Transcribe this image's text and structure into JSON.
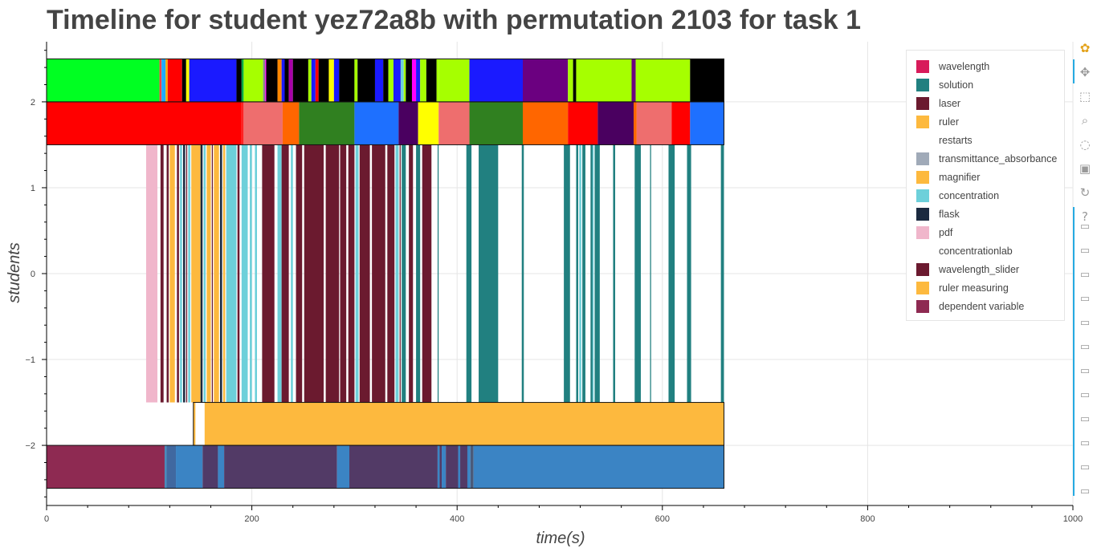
{
  "chart_data": {
    "type": "bar",
    "orientation": "horizontal-timeline",
    "title": "Timeline for student yez72a8b with permutation 2103 for task 1",
    "xlabel": "time(s)",
    "ylabel": "students",
    "xlim": [
      0,
      1000
    ],
    "ylim": [
      -2.7,
      2.7
    ],
    "x_ticks": [
      0,
      200,
      400,
      600,
      800,
      1000
    ],
    "y_ticks": [
      -2,
      -1,
      0,
      1,
      2
    ],
    "y_tick_labels": [
      "−2",
      "−1",
      "0",
      "1",
      "2"
    ],
    "grid": true,
    "legend_position": "top-right",
    "legend": [
      {
        "label": "wavelength",
        "color": "#d81b5a"
      },
      {
        "label": "solution",
        "color": "#218080"
      },
      {
        "label": "laser",
        "color": "#6b1a2f"
      },
      {
        "label": "ruler",
        "color": "#fdb93e"
      },
      {
        "label": "restarts",
        "color": "#ffffff"
      },
      {
        "label": "transmittance_absorbance",
        "color": "#a0aab8"
      },
      {
        "label": "magnifier",
        "color": "#fdb93e"
      },
      {
        "label": "concentration",
        "color": "#6dd0da"
      },
      {
        "label": "flask",
        "color": "#1b2a40"
      },
      {
        "label": "pdf",
        "color": "#f0b6cb"
      },
      {
        "label": "concentrationlab",
        "color": "#ffffff"
      },
      {
        "label": "wavelength_slider",
        "color": "#6b1a2f"
      },
      {
        "label": "ruler measuring",
        "color": "#fdb93e"
      },
      {
        "label": "dependent variable",
        "color": "#8e2a52"
      }
    ],
    "rows": [
      {
        "y_range": [
          2,
          2.5
        ],
        "segments": [
          [
            0,
            110,
            "#00ff22"
          ],
          [
            110,
            112,
            "#ff4444"
          ],
          [
            112,
            116,
            "#22aaff"
          ],
          [
            116,
            118,
            "#ffaa00"
          ],
          [
            118,
            132,
            "#ff0000"
          ],
          [
            132,
            136,
            "#000000"
          ],
          [
            136,
            139,
            "#ffff00"
          ],
          [
            139,
            185,
            "#1a1aff"
          ],
          [
            185,
            190,
            "#000000"
          ],
          [
            190,
            192,
            "#00aa44"
          ],
          [
            192,
            211,
            "#a6ff00"
          ],
          [
            211,
            213,
            "#888888"
          ],
          [
            213,
            214,
            "#ff00ff"
          ],
          [
            214,
            225,
            "#000000"
          ],
          [
            225,
            229,
            "#ff8800"
          ],
          [
            229,
            232,
            "#1a1aff"
          ],
          [
            232,
            236,
            "#000000"
          ],
          [
            236,
            240,
            "#aa00aa"
          ],
          [
            240,
            255,
            "#000000"
          ],
          [
            255,
            258,
            "#a6ff00"
          ],
          [
            258,
            262,
            "#1a1aff"
          ],
          [
            262,
            265,
            "#ff0000"
          ],
          [
            265,
            275,
            "#000000"
          ],
          [
            275,
            280,
            "#ffff00"
          ],
          [
            280,
            285,
            "#1a1aff"
          ],
          [
            285,
            300,
            "#000000"
          ],
          [
            300,
            303,
            "#a6ff00"
          ],
          [
            303,
            320,
            "#000000"
          ],
          [
            320,
            328,
            "#1a1aff"
          ],
          [
            328,
            333,
            "#000000"
          ],
          [
            333,
            338,
            "#a6ff00"
          ],
          [
            338,
            345,
            "#1a1aff"
          ],
          [
            345,
            348,
            "#6dd0da"
          ],
          [
            348,
            350,
            "#a6ff00"
          ],
          [
            350,
            356,
            "#000000"
          ],
          [
            356,
            360,
            "#ff00ff"
          ],
          [
            360,
            364,
            "#1a1aff"
          ],
          [
            364,
            370,
            "#a6ff00"
          ],
          [
            370,
            380,
            "#000000"
          ],
          [
            380,
            382,
            "#a6ff00"
          ],
          [
            382,
            412,
            "#a6ff00"
          ],
          [
            412,
            464,
            "#1a1aff"
          ],
          [
            464,
            508,
            "#6b0080"
          ],
          [
            508,
            513,
            "#a6ff00"
          ],
          [
            513,
            516,
            "#000000"
          ],
          [
            516,
            570,
            "#a6ff00"
          ],
          [
            570,
            574,
            "#6b0080"
          ],
          [
            574,
            627,
            "#a6ff00"
          ],
          [
            627,
            660,
            "#000000"
          ]
        ]
      },
      {
        "y_range": [
          1.5,
          2
        ],
        "segments": [
          [
            0,
            190,
            "#ff0000"
          ],
          [
            190,
            192,
            "#ff2222"
          ],
          [
            192,
            230,
            "#ee6e6e"
          ],
          [
            230,
            246,
            "#ff6600"
          ],
          [
            246,
            300,
            "#308020"
          ],
          [
            300,
            343,
            "#1e70ff"
          ],
          [
            343,
            362,
            "#4a0060"
          ],
          [
            362,
            382,
            "#ffff00"
          ],
          [
            382,
            412,
            "#ee6e6e"
          ],
          [
            412,
            464,
            "#308020"
          ],
          [
            464,
            508,
            "#ff6600"
          ],
          [
            508,
            537,
            "#ff0000"
          ],
          [
            537,
            572,
            "#4a0060"
          ],
          [
            572,
            575,
            "#ff6600"
          ],
          [
            575,
            609,
            "#ee6e6e"
          ],
          [
            609,
            627,
            "#ff0000"
          ],
          [
            627,
            660,
            "#1e70ff"
          ]
        ]
      },
      {
        "y_range": [
          -1.5,
          1.5
        ],
        "segments": [
          [
            97,
            108,
            "#f0b6cb"
          ],
          [
            111,
            114,
            "#6b1a2f"
          ],
          [
            117,
            119,
            "#6b1a2f"
          ],
          [
            120,
            125,
            "#fdb93e"
          ],
          [
            127,
            129,
            "#6b1a2f"
          ],
          [
            130,
            132,
            "#6dd0da"
          ],
          [
            133,
            135,
            "#1b2a40"
          ],
          [
            136,
            137,
            "#6b1a2f"
          ],
          [
            138,
            140,
            "#6dd0da"
          ],
          [
            141,
            150,
            "#fdb93e"
          ],
          [
            150,
            152,
            "#1b2a40"
          ],
          [
            153,
            155,
            "#6dd0da"
          ],
          [
            156,
            160,
            "#fdb93e"
          ],
          [
            161,
            162,
            "#6b1a2f"
          ],
          [
            163,
            168,
            "#fdb93e"
          ],
          [
            169,
            171,
            "#1b2a40"
          ],
          [
            172,
            174,
            "#fdb93e"
          ],
          [
            175,
            185,
            "#6dd0da"
          ],
          [
            186,
            188,
            "#6b1a2f"
          ],
          [
            190,
            196,
            "#6dd0da"
          ],
          [
            198,
            200,
            "#6dd0da"
          ],
          [
            203,
            205,
            "#6dd0da"
          ],
          [
            210,
            222,
            "#6b1a2f"
          ],
          [
            225,
            229,
            "#6dd0da"
          ],
          [
            229,
            236,
            "#6b1a2f"
          ],
          [
            238,
            240,
            "#6dd0da"
          ],
          [
            243,
            249,
            "#6b1a2f"
          ],
          [
            251,
            270,
            "#6b1a2f"
          ],
          [
            272,
            285,
            "#6b1a2f"
          ],
          [
            286,
            292,
            "#6b1a2f"
          ],
          [
            294,
            300,
            "#6b1a2f"
          ],
          [
            301,
            304,
            "#6dd0da"
          ],
          [
            305,
            315,
            "#6b1a2f"
          ],
          [
            317,
            330,
            "#6b1a2f"
          ],
          [
            332,
            339,
            "#6b1a2f"
          ],
          [
            340,
            343,
            "#6dd0da"
          ],
          [
            344,
            345,
            "#6b1a2f"
          ],
          [
            346,
            350,
            "#218080"
          ],
          [
            353,
            357,
            "#6b1a2f"
          ],
          [
            360,
            364,
            "#218080"
          ],
          [
            366,
            375,
            "#6b1a2f"
          ],
          [
            381,
            382,
            "#218080"
          ],
          [
            409,
            414,
            "#218080"
          ],
          [
            421,
            440,
            "#218080"
          ],
          [
            463,
            465,
            "#218080"
          ],
          [
            504,
            510,
            "#218080"
          ],
          [
            516,
            518,
            "#218080"
          ],
          [
            519,
            521,
            "#6dd0da"
          ],
          [
            522,
            525,
            "#218080"
          ],
          [
            530,
            532,
            "#218080"
          ],
          [
            532,
            533,
            "#6dd0da"
          ],
          [
            534,
            539,
            "#218080"
          ],
          [
            552,
            554,
            "#218080"
          ],
          [
            573,
            579,
            "#218080"
          ],
          [
            588,
            589,
            "#218080"
          ],
          [
            606,
            612,
            "#218080"
          ],
          [
            624,
            628,
            "#218080"
          ],
          [
            657,
            660,
            "#218080"
          ]
        ]
      },
      {
        "y_range": [
          -2,
          -1.5
        ],
        "segments": [
          [
            143,
            145,
            "#fdb93e"
          ],
          [
            154,
            660,
            "#fdb93e"
          ]
        ]
      },
      {
        "y_range": [
          -2.5,
          -2
        ],
        "segments": [
          [
            0,
            115,
            "#8e2a52"
          ],
          [
            115,
            117,
            "#4a8aba"
          ],
          [
            117,
            126,
            "#4068a0"
          ],
          [
            126,
            152,
            "#3b84c4"
          ],
          [
            152,
            167,
            "#503a68"
          ],
          [
            167,
            173,
            "#3b84c4"
          ],
          [
            173,
            283,
            "#523a66"
          ],
          [
            283,
            295,
            "#3b84c4"
          ],
          [
            295,
            381,
            "#523a66"
          ],
          [
            381,
            383,
            "#3b84c4"
          ],
          [
            383,
            385,
            "#523a66"
          ],
          [
            385,
            389,
            "#3b84c4"
          ],
          [
            389,
            401,
            "#523a66"
          ],
          [
            401,
            403,
            "#3b84c4"
          ],
          [
            403,
            410,
            "#523a66"
          ],
          [
            410,
            413,
            "#3b84c4"
          ],
          [
            413,
            416,
            "#4a5a7a"
          ],
          [
            416,
            660,
            "#3b84c4"
          ]
        ]
      }
    ]
  },
  "toolbar": {
    "icons": [
      "bokeh-logo-icon",
      "pan-icon",
      "box-zoom-icon",
      "wheel-zoom-icon",
      "lasso-select-icon",
      "save-icon",
      "reset-icon",
      "help-icon",
      "hover-icon"
    ]
  }
}
